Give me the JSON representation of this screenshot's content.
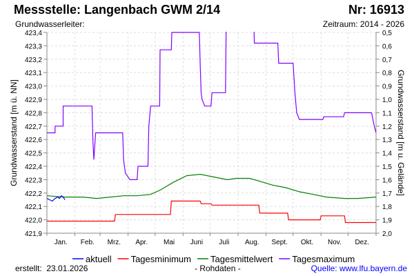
{
  "header": {
    "title": "Messstelle: Langenbach GWM 2/14",
    "number": "Nr: 16913",
    "aquifer": "Grundwasserleiter:",
    "period": "Zeitraum: 2014 - 2026"
  },
  "footer": {
    "created_label": "erstellt:",
    "created_date": "23.01.2026",
    "raw": "- Rohdaten -",
    "source": "Quelle: www.lfu.bayern.de"
  },
  "chart_data": {
    "type": "line",
    "ylabel": "Grundwasserstand [m ü. NN]",
    "y2label": "Grundwasserstand [m u. Gelände]",
    "ylim": [
      421.9,
      423.4
    ],
    "y2lim": [
      2.0,
      0.5
    ],
    "yticks": [
      "423,4",
      "423,3",
      "423,2",
      "423,1",
      "423,0",
      "422,9",
      "422,8",
      "422,7",
      "422,6",
      "422,5",
      "422,4",
      "422,3",
      "422,2",
      "422,1",
      "422,0",
      "421,9"
    ],
    "y2ticks": [
      "0,5",
      "0,6",
      "0,7",
      "0,8",
      "0,9",
      "1,0",
      "1,1",
      "1,2",
      "1,3",
      "1,4",
      "1,5",
      "1,6",
      "1,7",
      "1,8",
      "1,9",
      "2,0"
    ],
    "months": [
      "Jan.",
      "Feb.",
      "Mrz.",
      "Apr.",
      "Mai",
      "Juni",
      "Juli",
      "Aug.",
      "Sept.",
      "Okt.",
      "Nov.",
      "Dez."
    ],
    "xunit": "day of year",
    "grid": true,
    "legend_position": "bottom",
    "series": [
      {
        "name": "aktuell",
        "color": "#0000ff",
        "x": [
          0,
          3,
          6,
          9,
          12,
          14,
          16,
          18,
          20
        ],
        "y": [
          422.16,
          422.15,
          422.14,
          422.16,
          422.17,
          422.16,
          422.18,
          422.17,
          422.15
        ]
      },
      {
        "name": "Tagesminimum",
        "color": "#ff0000",
        "x": [
          0,
          75,
          76,
          137,
          138,
          170,
          171,
          182,
          183,
          235,
          236,
          267,
          268,
          303,
          304,
          330,
          331,
          365
        ],
        "y": [
          421.99,
          421.99,
          422.04,
          422.04,
          422.14,
          422.14,
          422.12,
          422.12,
          422.11,
          422.11,
          422.05,
          422.05,
          422.0,
          422.0,
          422.03,
          422.03,
          421.98,
          421.98
        ]
      },
      {
        "name": "Tagesmittelwert",
        "color": "#008000",
        "x": [
          0,
          20,
          40,
          55,
          70,
          85,
          100,
          115,
          125,
          140,
          155,
          170,
          185,
          200,
          210,
          225,
          235,
          250,
          265,
          280,
          295,
          310,
          330,
          345,
          365
        ],
        "y": [
          422.18,
          422.17,
          422.17,
          422.16,
          422.17,
          422.18,
          422.18,
          422.19,
          422.22,
          422.28,
          422.33,
          422.34,
          422.32,
          422.3,
          422.31,
          422.31,
          422.29,
          422.26,
          422.24,
          422.21,
          422.19,
          422.17,
          422.16,
          422.16,
          422.17
        ],
        "step": false
      },
      {
        "name": "Tagesmaximum",
        "color": "#8000ff",
        "x": [
          0,
          9,
          9,
          18,
          18,
          50,
          51,
          52,
          53,
          54,
          84,
          85,
          87,
          92,
          100,
          101,
          112,
          113,
          115,
          125,
          125.5,
          138,
          138.5,
          169,
          170,
          171,
          172,
          175,
          182,
          183,
          198,
          199,
          229,
          230,
          256,
          257,
          273,
          275,
          277,
          280,
          306,
          307,
          329,
          330,
          360,
          363,
          365
        ],
        "y": [
          422.65,
          422.65,
          422.7,
          422.7,
          422.85,
          422.85,
          422.6,
          422.45,
          422.55,
          422.65,
          422.65,
          422.45,
          422.35,
          422.3,
          422.3,
          422.4,
          422.4,
          422.7,
          422.85,
          422.85,
          423.27,
          423.27,
          423.4,
          423.4,
          423.15,
          422.95,
          422.9,
          422.85,
          422.85,
          422.95,
          422.95,
          423.6,
          423.6,
          423.32,
          423.32,
          423.17,
          423.17,
          422.95,
          422.8,
          422.75,
          422.75,
          422.77,
          422.77,
          422.8,
          422.8,
          422.7,
          422.65
        ]
      }
    ]
  }
}
